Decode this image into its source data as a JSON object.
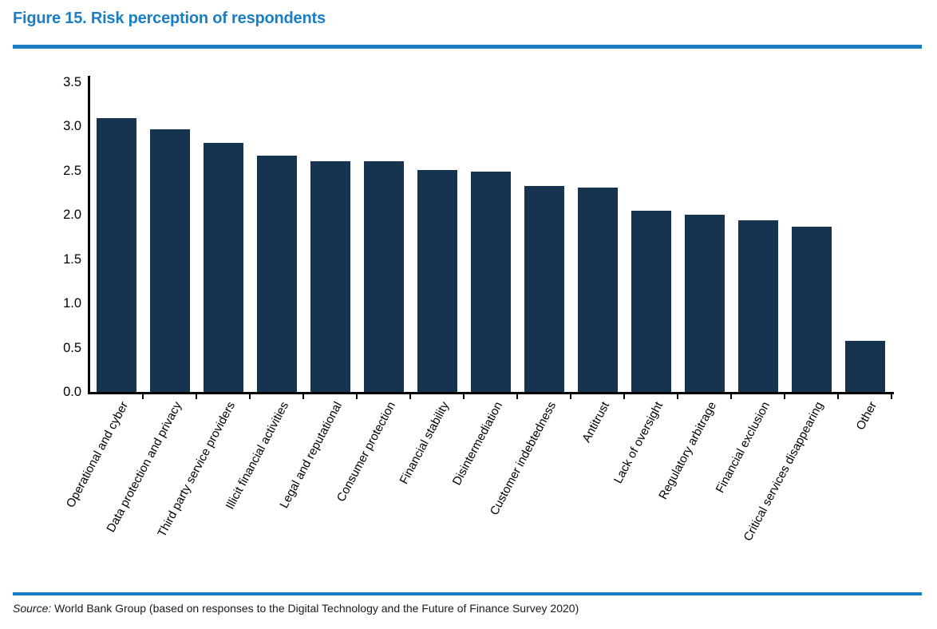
{
  "figure": {
    "title": "Figure 15. Risk perception of respondents",
    "source_label": "Source:",
    "source_text": " World Bank Group (based on responses to the Digital Technology and the Future of Finance Survey 2020)"
  },
  "colors": {
    "accent_blue": "#1b7ec2",
    "bar_navy": "#16334f",
    "axis_black": "#000000"
  },
  "chart_data": {
    "type": "bar",
    "title": "Risk perception of respondents",
    "categories": [
      "Operational and cyber",
      "Data protection and privacy",
      "Third party service providers",
      "Illicit financial activities",
      "Legal and reputational",
      "Consumer protection",
      "Financial stability",
      "Disintermediation",
      "Customer indebtedness",
      "Antitrust",
      "Lack of oversight",
      "Regulatory arbitrage",
      "Financial exclusion",
      "Critical services disappearing",
      "Other"
    ],
    "values": [
      3.09,
      2.97,
      2.81,
      2.67,
      2.61,
      2.61,
      2.51,
      2.49,
      2.33,
      2.31,
      2.05,
      2.0,
      1.94,
      1.87,
      0.58
    ],
    "xlabel": "",
    "ylabel": "",
    "ylim": [
      0,
      3.5
    ],
    "yticks": [
      0.0,
      0.5,
      1.0,
      1.5,
      2.0,
      2.5,
      3.0,
      3.5
    ],
    "ytick_labels": [
      "0.0",
      "0.5",
      "1.0",
      "1.5",
      "2.0",
      "2.5",
      "3.0",
      "3.5"
    ],
    "grid": "off",
    "legend": "none",
    "bar_color": "#16334f",
    "xtick_label_rotation_deg": 62
  }
}
